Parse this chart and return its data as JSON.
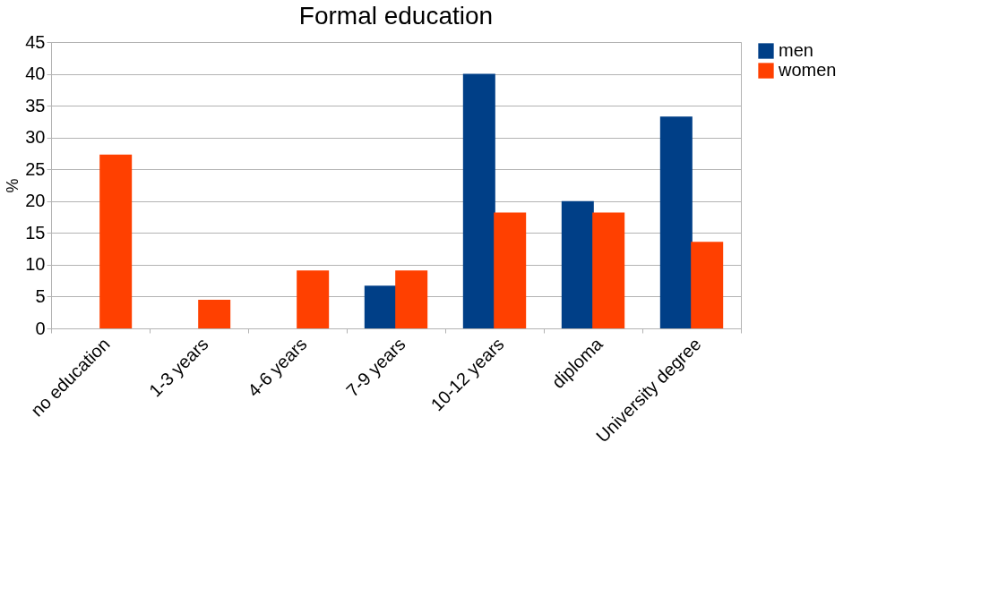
{
  "chart_data": {
    "type": "bar",
    "title": "Formal education",
    "ylabel": "%",
    "categories": [
      "no education",
      "1-3 years",
      "4-6 years",
      "7-9 years",
      "10-12 years",
      "diploma",
      "University degree"
    ],
    "series": [
      {
        "name": "men",
        "color": "#003f87",
        "values": [
          0,
          0,
          0,
          6.7,
          40,
          20,
          33.3
        ]
      },
      {
        "name": "women",
        "color": "#ff4000",
        "values": [
          27.3,
          4.5,
          9.1,
          9.1,
          18.2,
          18.2,
          13.6
        ]
      }
    ],
    "ylim": [
      0,
      45
    ],
    "yticks": [
      0,
      5,
      10,
      15,
      20,
      25,
      30,
      35,
      40,
      45
    ],
    "grid": "y",
    "legend": "right"
  }
}
